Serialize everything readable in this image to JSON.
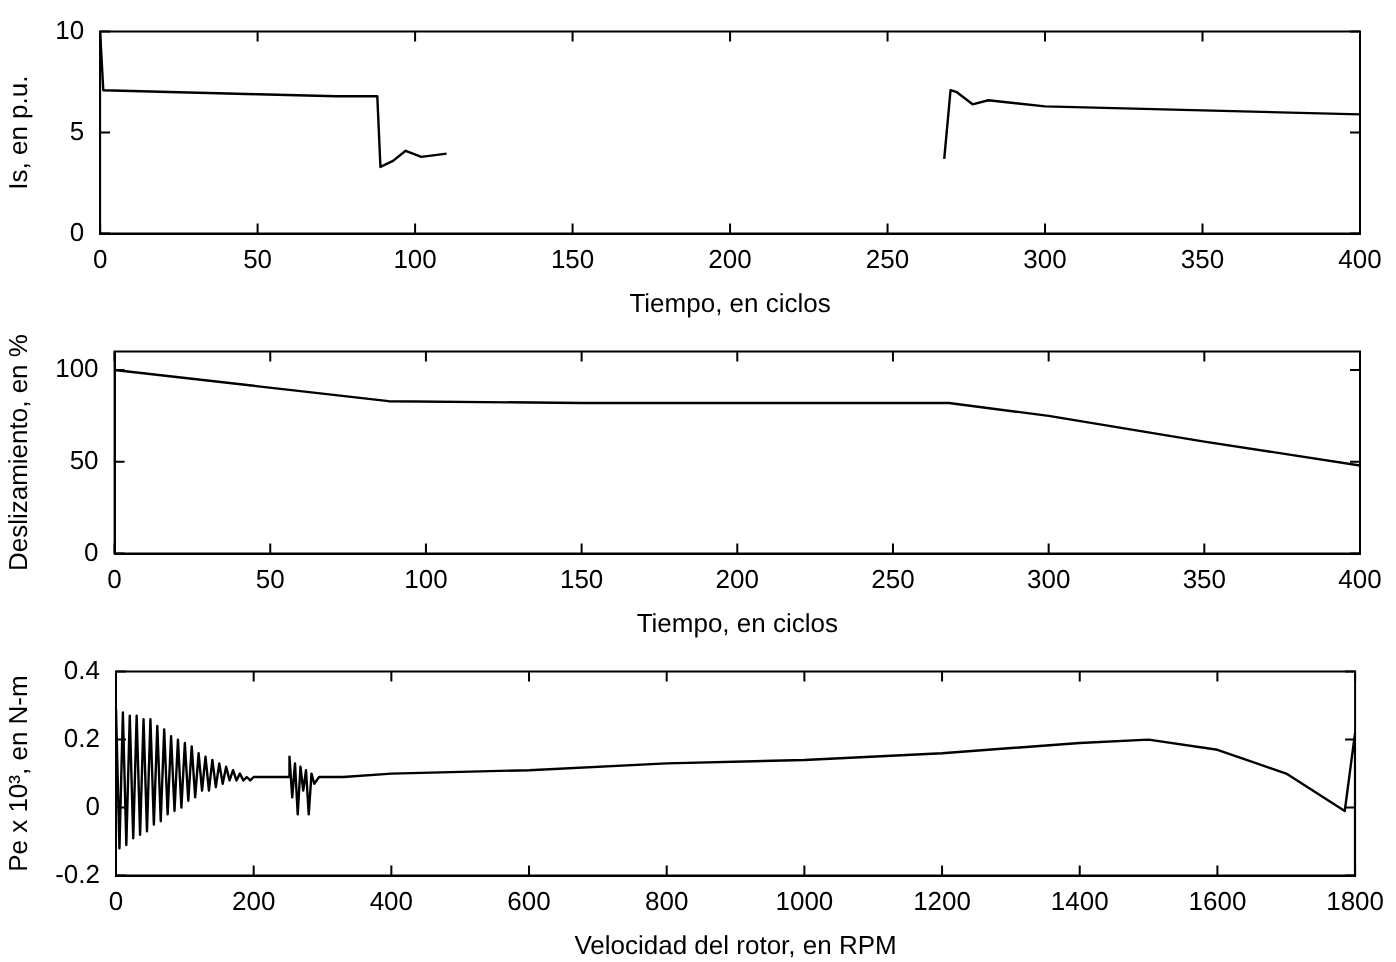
{
  "chart_data": [
    {
      "type": "line",
      "ylabel": "Is, en p.u.",
      "xlabel": "Tiempo, en ciclos",
      "xlim": [
        0,
        400
      ],
      "xticks": [
        0,
        50,
        100,
        150,
        200,
        250,
        300,
        350,
        400
      ],
      "ylim": [
        0,
        10
      ],
      "yticks": [
        0,
        5,
        10
      ],
      "grid": false,
      "legend": false,
      "series": [
        {
          "color": "#000000",
          "x": [
            0,
            1,
            25,
            50,
            75,
            88,
            89,
            93,
            97,
            102,
            110,
            190,
            268,
            270,
            272,
            277,
            282,
            300,
            350,
            400
          ],
          "values": [
            10,
            7.1,
            7.0,
            6.9,
            6.8,
            6.8,
            3.3,
            3.6,
            4.1,
            3.8,
            3.96,
            null,
            3.7,
            7.1,
            7.0,
            6.4,
            6.6,
            6.3,
            6.1,
            5.9
          ]
        }
      ]
    },
    {
      "type": "line",
      "ylabel": "Deslizamiento, en %",
      "xlabel": "Tiempo, en ciclos",
      "xlim": [
        0,
        400
      ],
      "xticks": [
        0,
        50,
        100,
        150,
        200,
        250,
        300,
        350,
        400
      ],
      "ylim": [
        0,
        110
      ],
      "yticks": [
        0,
        50,
        100
      ],
      "grid": false,
      "legend": false,
      "series": [
        {
          "color": "#000000",
          "x": [
            0,
            88,
            150,
            200,
            268,
            300,
            350,
            400
          ],
          "values": [
            100,
            83,
            82,
            82,
            82,
            75,
            61,
            48
          ]
        }
      ]
    },
    {
      "type": "line",
      "ylabel": "Pe x 10³, en N-m",
      "xlabel": "Velocidad del rotor, en RPM",
      "xlim": [
        0,
        1800
      ],
      "xticks": [
        0,
        200,
        400,
        600,
        800,
        1000,
        1200,
        1400,
        1600,
        1800
      ],
      "ylim": [
        -0.2,
        0.4
      ],
      "yticks": [
        -0.2,
        0,
        0.2,
        0.4
      ],
      "grid": false,
      "legend": false,
      "series": [
        {
          "color": "#000000",
          "x": [
            0,
            5,
            10,
            15,
            20,
            25,
            30,
            35,
            40,
            45,
            50,
            55,
            60,
            65,
            70,
            75,
            80,
            85,
            90,
            95,
            100,
            105,
            110,
            115,
            120,
            125,
            130,
            135,
            140,
            145,
            150,
            155,
            160,
            165,
            170,
            175,
            180,
            185,
            190,
            195,
            200,
            220,
            250,
            252,
            256,
            260,
            264,
            268,
            272,
            276,
            280,
            284,
            288,
            295,
            310,
            330,
            400,
            600,
            800,
            1000,
            1200,
            1400,
            1500,
            1600,
            1700,
            1785,
            1800,
            1800
          ],
          "values": [
            0.29,
            -0.12,
            0.28,
            -0.11,
            0.27,
            -0.09,
            0.27,
            -0.08,
            0.26,
            -0.07,
            0.26,
            -0.05,
            0.24,
            -0.04,
            0.23,
            -0.02,
            0.21,
            -0.01,
            0.2,
            0.0,
            0.19,
            0.02,
            0.18,
            0.03,
            0.16,
            0.05,
            0.15,
            0.05,
            0.14,
            0.06,
            0.13,
            0.07,
            0.12,
            0.08,
            0.11,
            0.08,
            0.1,
            0.08,
            0.09,
            0.08,
            0.09,
            0.09,
            0.09,
            0.15,
            0.03,
            0.13,
            -0.02,
            0.12,
            0.05,
            0.11,
            -0.02,
            0.1,
            0.07,
            0.09,
            0.09,
            0.09,
            0.1,
            0.11,
            0.13,
            0.14,
            0.16,
            0.19,
            0.2,
            0.17,
            0.1,
            -0.01,
            0.22,
            -0.2
          ]
        }
      ]
    }
  ]
}
